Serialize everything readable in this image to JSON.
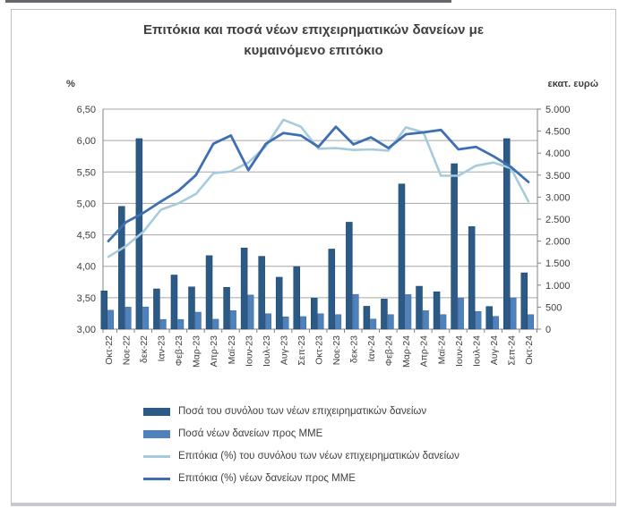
{
  "chart_data": {
    "type": "combo-bar-line",
    "title": "Επιτόκια και ποσά νέων επιχειρηματικών δανείων με κυμαινόμενο επιτόκιο",
    "left_axis": {
      "unit_label": "%",
      "min": 3.0,
      "max": 6.5,
      "step": 0.5,
      "tick_labels": [
        "3,00",
        "3,50",
        "4,00",
        "4,50",
        "5,00",
        "5,50",
        "6,00",
        "6,50"
      ]
    },
    "right_axis": {
      "unit_label": "εκατ. ευρώ",
      "min": 0,
      "max": 5000,
      "step": 500,
      "tick_labels": [
        "0",
        "500",
        "1.000",
        "1.500",
        "2.000",
        "2.500",
        "3.000",
        "3.500",
        "4.000",
        "4.500",
        "5.000"
      ]
    },
    "categories": [
      "Οκτ-22",
      "Νοε-22",
      "δεκ-22",
      "Ιαν-23",
      "Φεβ-23",
      "Μαρ-23",
      "Απρ-23",
      "Μαϊ-23",
      "Ιουν-23",
      "Ιουλ-23",
      "Αυγ-23",
      "Σεπ-23",
      "Οκτ-23",
      "Νοε-23",
      "δεκ-23",
      "Ιαν-24",
      "Φεβ-24",
      "Μαρ-24",
      "Απρ-24",
      "Μαϊ-24",
      "Ιουν-24",
      "Ιουλ-24",
      "Αυγ-24",
      "Σεπ-24",
      "Οκτ-24"
    ],
    "series": [
      {
        "name": "Ποσά του συνόλου των νέων επιχειρηματικών δανείων",
        "type": "bar",
        "axis": "right",
        "color": "#2b5a87",
        "edge": "#1d3f63",
        "values": [
          870,
          2790,
          4330,
          915,
          1230,
          960,
          1670,
          950,
          1845,
          1655,
          1180,
          1420,
          705,
          1820,
          2430,
          520,
          685,
          3300,
          975,
          850,
          3760,
          2330,
          515,
          4330,
          1280
        ]
      },
      {
        "name": "Ποσά νέων δανείων προς ΜΜΕ",
        "type": "bar",
        "axis": "right",
        "color": "#4f81bd",
        "edge": "#3a6492",
        "values": [
          430,
          500,
          505,
          220,
          220,
          385,
          225,
          420,
          775,
          350,
          280,
          285,
          350,
          330,
          790,
          230,
          330,
          785,
          420,
          330,
          710,
          400,
          290,
          710,
          330
        ]
      },
      {
        "name": "Επιτόκια (%) του συνόλου των νέων επιχειρηματικών δανείων",
        "type": "line",
        "axis": "left",
        "color": "#a6cbdc",
        "values": [
          4.15,
          4.32,
          4.55,
          4.9,
          5.0,
          5.15,
          5.48,
          5.51,
          5.65,
          5.91,
          6.33,
          6.22,
          5.87,
          5.88,
          5.85,
          5.86,
          5.84,
          6.21,
          6.13,
          5.44,
          5.44,
          5.6,
          5.65,
          5.56,
          5.03
        ]
      },
      {
        "name": "Επιτόκια (%) νέων δανείων προς ΜΜΕ",
        "type": "line",
        "axis": "left",
        "color": "#3e6fb2",
        "values": [
          4.4,
          4.7,
          4.85,
          5.03,
          5.2,
          5.45,
          5.95,
          6.08,
          5.53,
          5.95,
          6.12,
          6.08,
          5.9,
          6.22,
          5.94,
          6.05,
          5.88,
          6.1,
          6.13,
          6.17,
          5.86,
          5.9,
          5.75,
          5.58,
          5.34
        ]
      }
    ],
    "grid": true,
    "legend_position": "bottom",
    "colors": {
      "gridline": "#a6a6a6",
      "axis": "#808080",
      "tick_text": "#404040",
      "frame_border": "#bfbfbf"
    }
  }
}
